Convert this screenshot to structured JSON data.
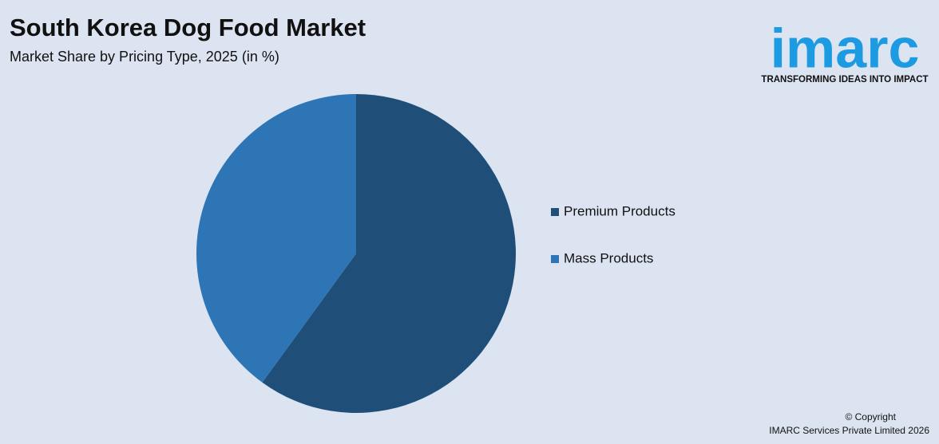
{
  "chart_data": {
    "type": "pie",
    "title": "South Korea Dog Food Market",
    "subtitle": "Market Share by Pricing Type, 2025 (in %)",
    "categories": [
      "Premium Products",
      "Mass Products"
    ],
    "values": [
      60,
      40
    ],
    "colors": [
      "#1f4e79",
      "#2e75b6"
    ],
    "legend": "right"
  },
  "brand": {
    "logo": "imarc",
    "tagline": "TRANSFORMING IDEAS INTO IMPACT"
  },
  "footer": {
    "copyright": "© Copyright",
    "owner": "IMARC Services Private Limited 2026"
  }
}
